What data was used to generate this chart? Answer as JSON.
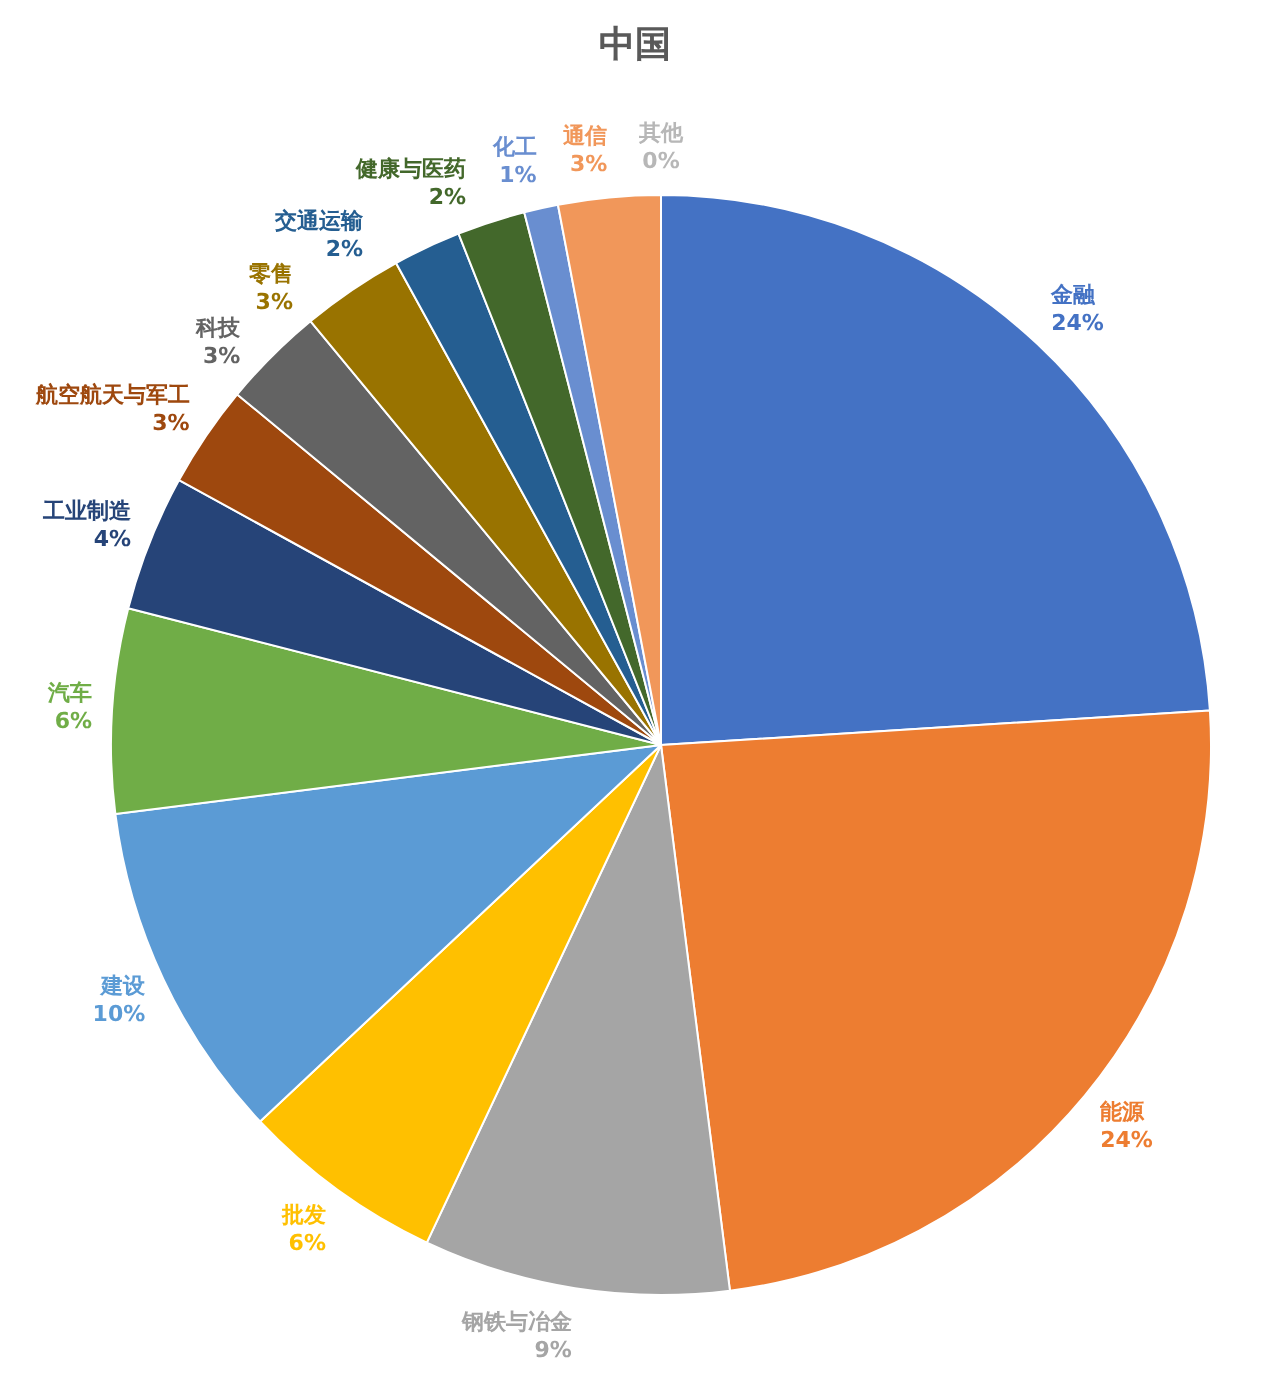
{
  "chart_data": {
    "type": "pie",
    "title": "中国",
    "categories": [
      "金融",
      "能源",
      "钢铁与冶金",
      "批发",
      "建设",
      "汽车",
      "工业制造",
      "航空航天与军工",
      "科技",
      "零售",
      "交通运输",
      "健康与医药",
      "化工",
      "通信",
      "其他"
    ],
    "values": [
      24,
      24,
      9,
      6,
      10,
      6,
      4,
      3,
      3,
      3,
      2,
      2,
      1,
      3,
      0
    ],
    "colors": [
      "#4472c4",
      "#ed7d31",
      "#a5a5a5",
      "#ffc000",
      "#5b9bd5",
      "#70ad47",
      "#264478",
      "#9e480e",
      "#636363",
      "#997300",
      "#255e91",
      "#43682b",
      "#698ed0",
      "#f1975a",
      "#b7b7b7"
    ],
    "value_labels": [
      "24%",
      "24%",
      "9%",
      "6%",
      "10%",
      "6%",
      "4%",
      "3%",
      "3%",
      "3%",
      "2%",
      "2%",
      "1%",
      "3%",
      "0%"
    ]
  }
}
